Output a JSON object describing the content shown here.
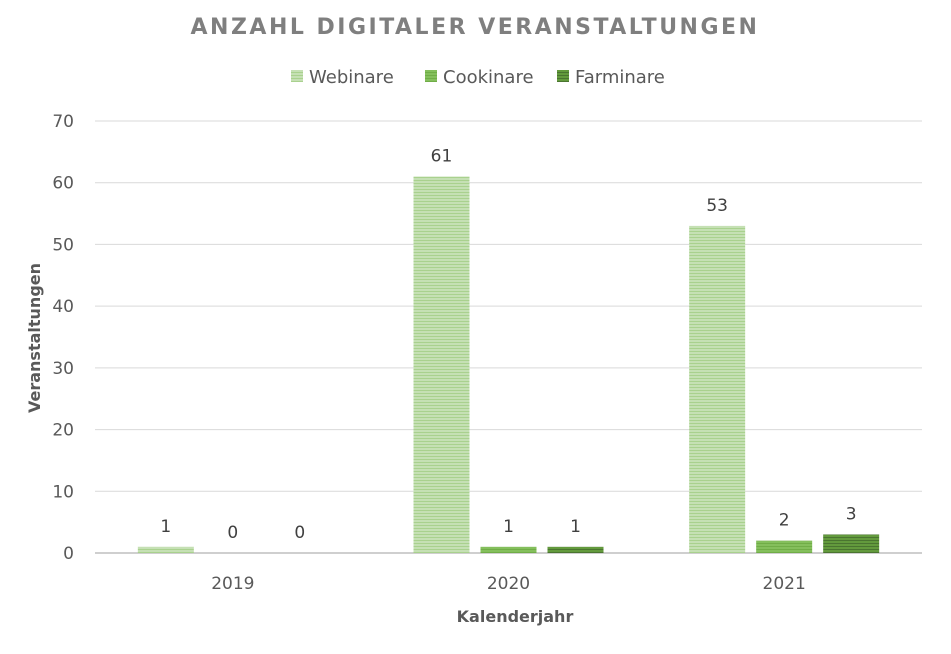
{
  "chart_data": {
    "type": "bar",
    "title": "ANZAHL DIGITALER VERANSTALTUNGEN",
    "xlabel": "Kalenderjahr",
    "ylabel": "Veranstaltungen",
    "categories": [
      "2019",
      "2020",
      "2021"
    ],
    "series": [
      {
        "name": "Webinare",
        "values": [
          1,
          61,
          53
        ],
        "color": "#c5e0b4"
      },
      {
        "name": "Cookinare",
        "values": [
          0,
          1,
          2
        ],
        "color": "#70ad47"
      },
      {
        "name": "Farminare",
        "values": [
          0,
          1,
          3
        ],
        "color": "#548235"
      }
    ],
    "ylim": [
      0,
      70
    ],
    "yticks": [
      0,
      10,
      20,
      30,
      40,
      50,
      60,
      70
    ],
    "grid": true,
    "legend": "top",
    "data_labels": true
  }
}
